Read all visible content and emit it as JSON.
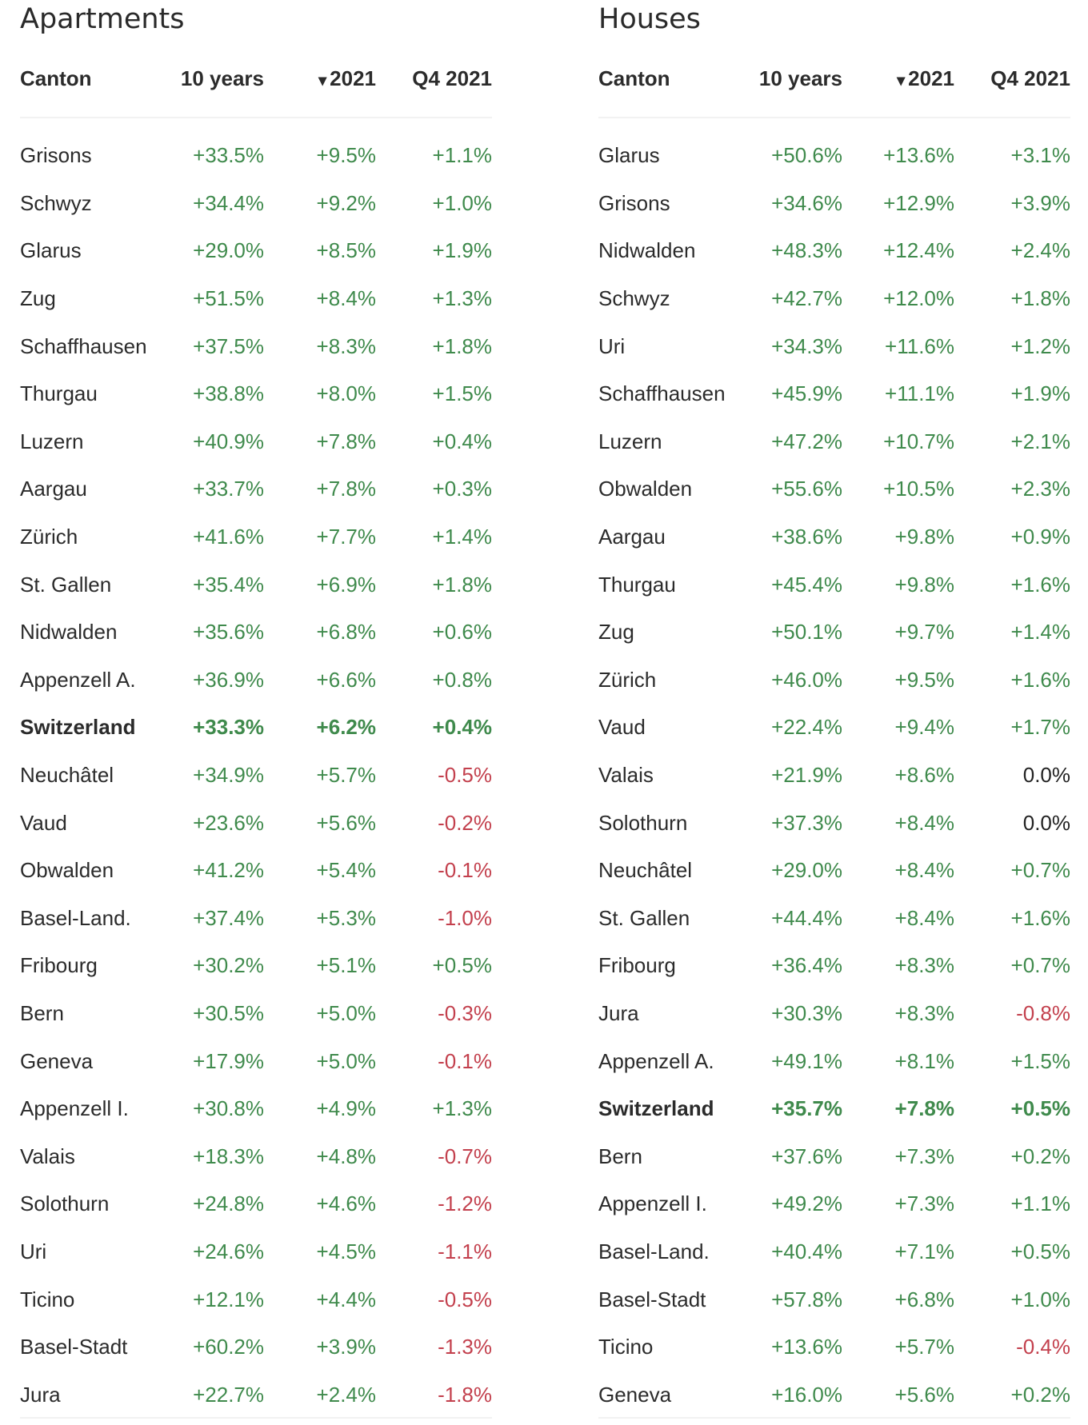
{
  "colors": {
    "positive": "#3f8a4c",
    "negative": "#c3404d",
    "neutral": "#222222"
  },
  "apartments": {
    "title": "Apartments",
    "headers": {
      "canton": "Canton",
      "ten_years": "10 years",
      "sort_icon": "▾",
      "year": "2021",
      "quarter": "Q4 2021"
    },
    "rows": [
      [
        "Grisons",
        "+33.5%",
        "+9.5%",
        "+1.1%"
      ],
      [
        "Schwyz",
        "+34.4%",
        "+9.2%",
        "+1.0%"
      ],
      [
        "Glarus",
        "+29.0%",
        "+8.5%",
        "+1.9%"
      ],
      [
        "Zug",
        "+51.5%",
        "+8.4%",
        "+1.3%"
      ],
      [
        "Schaffhausen",
        "+37.5%",
        "+8.3%",
        "+1.8%"
      ],
      [
        "Thurgau",
        "+38.8%",
        "+8.0%",
        "+1.5%"
      ],
      [
        "Luzern",
        "+40.9%",
        "+7.8%",
        "+0.4%"
      ],
      [
        "Aargau",
        "+33.7%",
        "+7.8%",
        "+0.3%"
      ],
      [
        "Zürich",
        "+41.6%",
        "+7.7%",
        "+1.4%"
      ],
      [
        "St. Gallen",
        "+35.4%",
        "+6.9%",
        "+1.8%"
      ],
      [
        "Nidwalden",
        "+35.6%",
        "+6.8%",
        "+0.6%"
      ],
      [
        "Appenzell A.",
        "+36.9%",
        "+6.6%",
        "+0.8%"
      ],
      [
        "Switzerland",
        "+33.3%",
        "+6.2%",
        "+0.4%"
      ],
      [
        "Neuchâtel",
        "+34.9%",
        "+5.7%",
        "-0.5%"
      ],
      [
        "Vaud",
        "+23.6%",
        "+5.6%",
        "-0.2%"
      ],
      [
        "Obwalden",
        "+41.2%",
        "+5.4%",
        "-0.1%"
      ],
      [
        "Basel-Land.",
        "+37.4%",
        "+5.3%",
        "-1.0%"
      ],
      [
        "Fribourg",
        "+30.2%",
        "+5.1%",
        "+0.5%"
      ],
      [
        "Bern",
        "+30.5%",
        "+5.0%",
        "-0.3%"
      ],
      [
        "Geneva",
        "+17.9%",
        "+5.0%",
        "-0.1%"
      ],
      [
        "Appenzell I.",
        "+30.8%",
        "+4.9%",
        "+1.3%"
      ],
      [
        "Valais",
        "+18.3%",
        "+4.8%",
        "-0.7%"
      ],
      [
        "Solothurn",
        "+24.8%",
        "+4.6%",
        "-1.2%"
      ],
      [
        "Uri",
        "+24.6%",
        "+4.5%",
        "-1.1%"
      ],
      [
        "Ticino",
        "+12.1%",
        "+4.4%",
        "-0.5%"
      ],
      [
        "Basel-Stadt",
        "+60.2%",
        "+3.9%",
        "-1.3%"
      ],
      [
        "Jura",
        "+22.7%",
        "+2.4%",
        "-1.8%"
      ]
    ]
  },
  "houses": {
    "title": "Houses",
    "headers": {
      "canton": "Canton",
      "ten_years": "10 years",
      "sort_icon": "▾",
      "year": "2021",
      "quarter": "Q4 2021"
    },
    "rows": [
      [
        "Glarus",
        "+50.6%",
        "+13.6%",
        "+3.1%"
      ],
      [
        "Grisons",
        "+34.6%",
        "+12.9%",
        "+3.9%"
      ],
      [
        "Nidwalden",
        "+48.3%",
        "+12.4%",
        "+2.4%"
      ],
      [
        "Schwyz",
        "+42.7%",
        "+12.0%",
        "+1.8%"
      ],
      [
        "Uri",
        "+34.3%",
        "+11.6%",
        "+1.2%"
      ],
      [
        "Schaffhausen",
        "+45.9%",
        "+11.1%",
        "+1.9%"
      ],
      [
        "Luzern",
        "+47.2%",
        "+10.7%",
        "+2.1%"
      ],
      [
        "Obwalden",
        "+55.6%",
        "+10.5%",
        "+2.3%"
      ],
      [
        "Aargau",
        "+38.6%",
        "+9.8%",
        "+0.9%"
      ],
      [
        "Thurgau",
        "+45.4%",
        "+9.8%",
        "+1.6%"
      ],
      [
        "Zug",
        "+50.1%",
        "+9.7%",
        "+1.4%"
      ],
      [
        "Zürich",
        "+46.0%",
        "+9.5%",
        "+1.6%"
      ],
      [
        "Vaud",
        "+22.4%",
        "+9.4%",
        "+1.7%"
      ],
      [
        "Valais",
        "+21.9%",
        "+8.6%",
        "0.0%"
      ],
      [
        "Solothurn",
        "+37.3%",
        "+8.4%",
        "0.0%"
      ],
      [
        "Neuchâtel",
        "+29.0%",
        "+8.4%",
        "+0.7%"
      ],
      [
        "St. Gallen",
        "+44.4%",
        "+8.4%",
        "+1.6%"
      ],
      [
        "Fribourg",
        "+36.4%",
        "+8.3%",
        "+0.7%"
      ],
      [
        "Jura",
        "+30.3%",
        "+8.3%",
        "-0.8%"
      ],
      [
        "Appenzell A.",
        "+49.1%",
        "+8.1%",
        "+1.5%"
      ],
      [
        "Switzerland",
        "+35.7%",
        "+7.8%",
        "+0.5%"
      ],
      [
        "Bern",
        "+37.6%",
        "+7.3%",
        "+0.2%"
      ],
      [
        "Appenzell I.",
        "+49.2%",
        "+7.3%",
        "+1.1%"
      ],
      [
        "Basel-Land.",
        "+40.4%",
        "+7.1%",
        "+0.5%"
      ],
      [
        "Basel-Stadt",
        "+57.8%",
        "+6.8%",
        "+1.0%"
      ],
      [
        "Ticino",
        "+13.6%",
        "+5.7%",
        "-0.4%"
      ],
      [
        "Geneva",
        "+16.0%",
        "+5.6%",
        "+0.2%"
      ]
    ],
    "bold_row": "Switzerland"
  }
}
